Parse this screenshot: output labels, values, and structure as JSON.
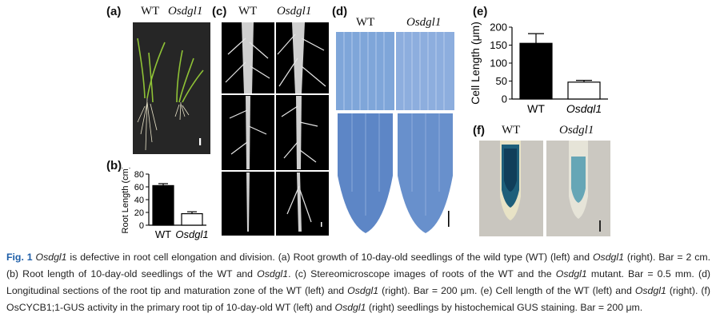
{
  "labels": {
    "a": "(a)",
    "b": "(b)",
    "c": "(c)",
    "d": "(d)",
    "e": "(e)",
    "f": "(f)",
    "wt": "WT",
    "mutant": "Osdgl1"
  },
  "chart_data": [
    {
      "id": "b",
      "type": "bar",
      "categories": [
        "WT",
        "Osdgl1"
      ],
      "values": [
        62,
        18
      ],
      "errors": [
        3,
        3
      ],
      "ylabel": "Root Length (cm)",
      "ylim": [
        0,
        80
      ],
      "yticks": [
        "0",
        "20",
        "40",
        "60",
        "80"
      ],
      "fills": [
        "#000000",
        "#ffffff"
      ]
    },
    {
      "id": "e",
      "type": "bar",
      "categories": [
        "WT",
        "Osdgl1"
      ],
      "values": [
        155,
        47
      ],
      "errors": [
        27,
        5
      ],
      "ylabel": "Cell Length (μm)",
      "ylim": [
        0,
        200
      ],
      "yticks": [
        "0",
        "50",
        "100",
        "150",
        "200"
      ],
      "fills": [
        "#000000",
        "#ffffff"
      ]
    }
  ],
  "caption": {
    "fig_label": "Fig. 1",
    "segments": [
      {
        "t": " ",
        "i": false
      },
      {
        "t": "Osdgl1",
        "i": true
      },
      {
        "t": " is defective in root cell elongation and division. (a) Root growth of 10-day-old seedlings of the wild type (WT) (left) and ",
        "i": false
      },
      {
        "t": "Osdgl1",
        "i": true
      },
      {
        "t": " (right). Bar = 2 cm. (b) Root length of 10-day-old seedlings of the WT and ",
        "i": false
      },
      {
        "t": "Osdgl1",
        "i": true
      },
      {
        "t": ". (c) Stereomicroscope images of roots of the WT and the ",
        "i": false
      },
      {
        "t": "Osdgl1",
        "i": true
      },
      {
        "t": " mutant. Bar = 0.5 mm. (d) Longitudinal sections of the root tip and maturation zone of the WT (left) and ",
        "i": false
      },
      {
        "t": "Osdgl1",
        "i": true
      },
      {
        "t": " (right). Bar = 200 μm. (e) Cell length of the WT (left) and ",
        "i": false
      },
      {
        "t": "Osdgl1",
        "i": true
      },
      {
        "t": " (right). (f) OsCYCB1;1-GUS activity in the primary root tip of 10-day-old WT (left) and ",
        "i": false
      },
      {
        "t": "Osdgl1",
        "i": true
      },
      {
        "t": " (right) seedlings by histochemical GUS staining. Bar = 200 μm.",
        "i": false
      }
    ]
  }
}
